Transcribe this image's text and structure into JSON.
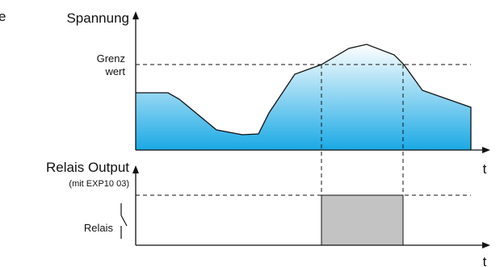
{
  "top_chart": {
    "y_axis_label": "Spannung",
    "x_axis_label": "t",
    "threshold_label_line1": "Grenz",
    "threshold_label_line2": "wert"
  },
  "bottom_chart": {
    "y_axis_label": "Relais Output",
    "y_axis_sublabel": "(mit EXP10 03)",
    "x_axis_label": "t",
    "relay_label": "Relais"
  },
  "colors": {
    "fill_top": "#ffffff",
    "fill_bottom": "#1aa9e5",
    "pulse_fill": "#c3c3c3",
    "line": "#111111"
  },
  "partial_text": "e"
}
